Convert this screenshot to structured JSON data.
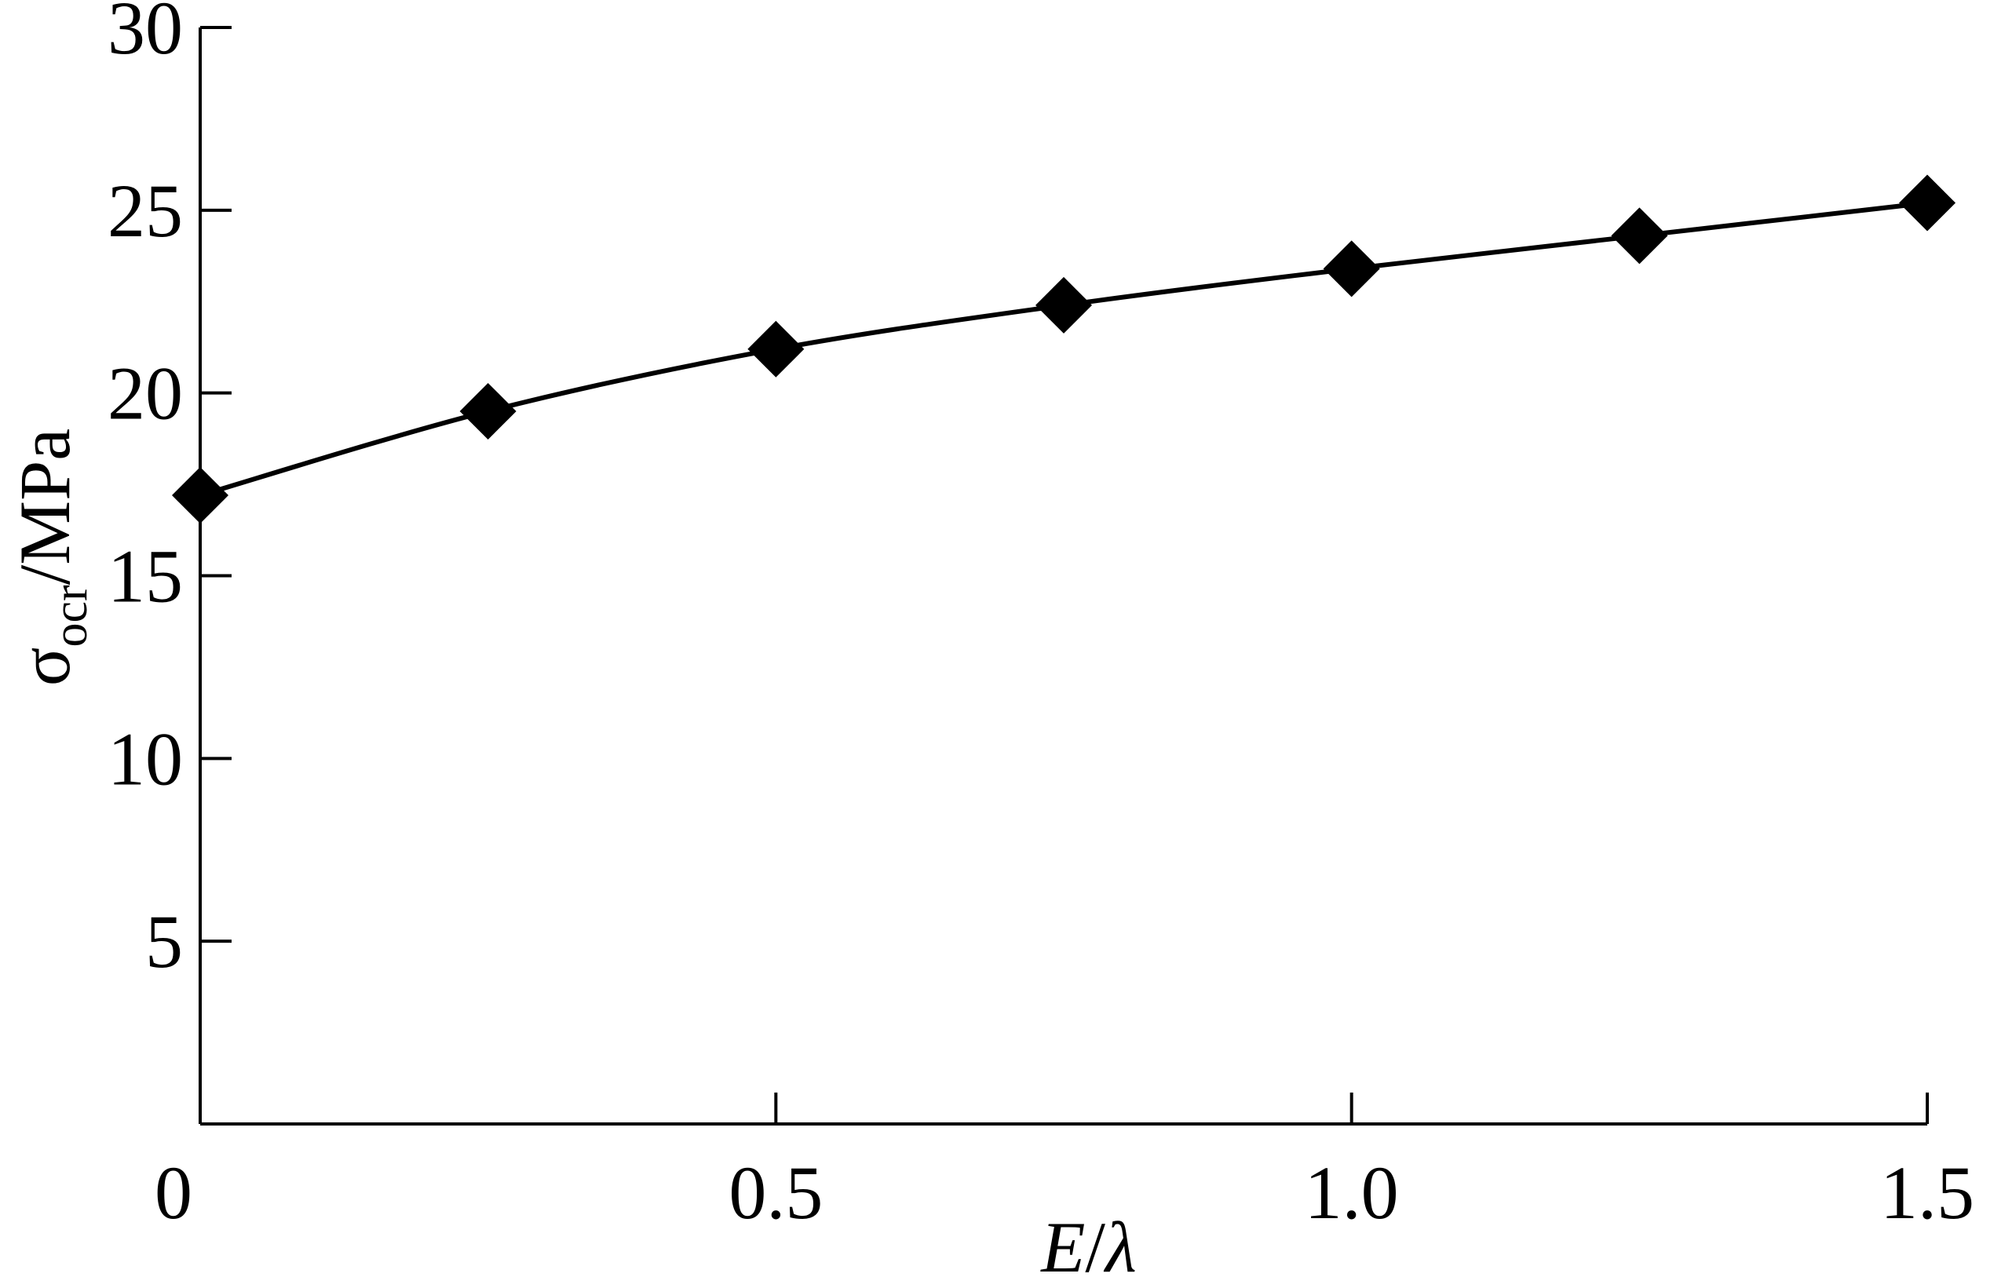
{
  "chart_data": {
    "type": "line",
    "title": "",
    "xlabel": {
      "var": "E",
      "sep": "/",
      "sym": "λ"
    },
    "ylabel": {
      "sym": "σ",
      "sub": "ocr",
      "unit": "/MPa"
    },
    "xlim": [
      0,
      1.5
    ],
    "ylim": [
      0,
      30
    ],
    "x_ticks": [
      0,
      0.5,
      1.0,
      1.5
    ],
    "x_tick_labels": [
      "0",
      "0.5",
      "1.0",
      "1.5"
    ],
    "y_ticks": [
      5,
      10,
      15,
      20,
      25,
      30
    ],
    "y_tick_labels": [
      "5",
      "10",
      "15",
      "20",
      "25",
      "30"
    ],
    "grid": false,
    "marker": "diamond",
    "line_color": "#000000",
    "series": [
      {
        "x": [
          0,
          0.25,
          0.5,
          0.75,
          1.0,
          1.25,
          1.5
        ],
        "y": [
          17.2,
          19.5,
          21.2,
          22.4,
          23.4,
          24.3,
          25.2
        ]
      }
    ]
  }
}
